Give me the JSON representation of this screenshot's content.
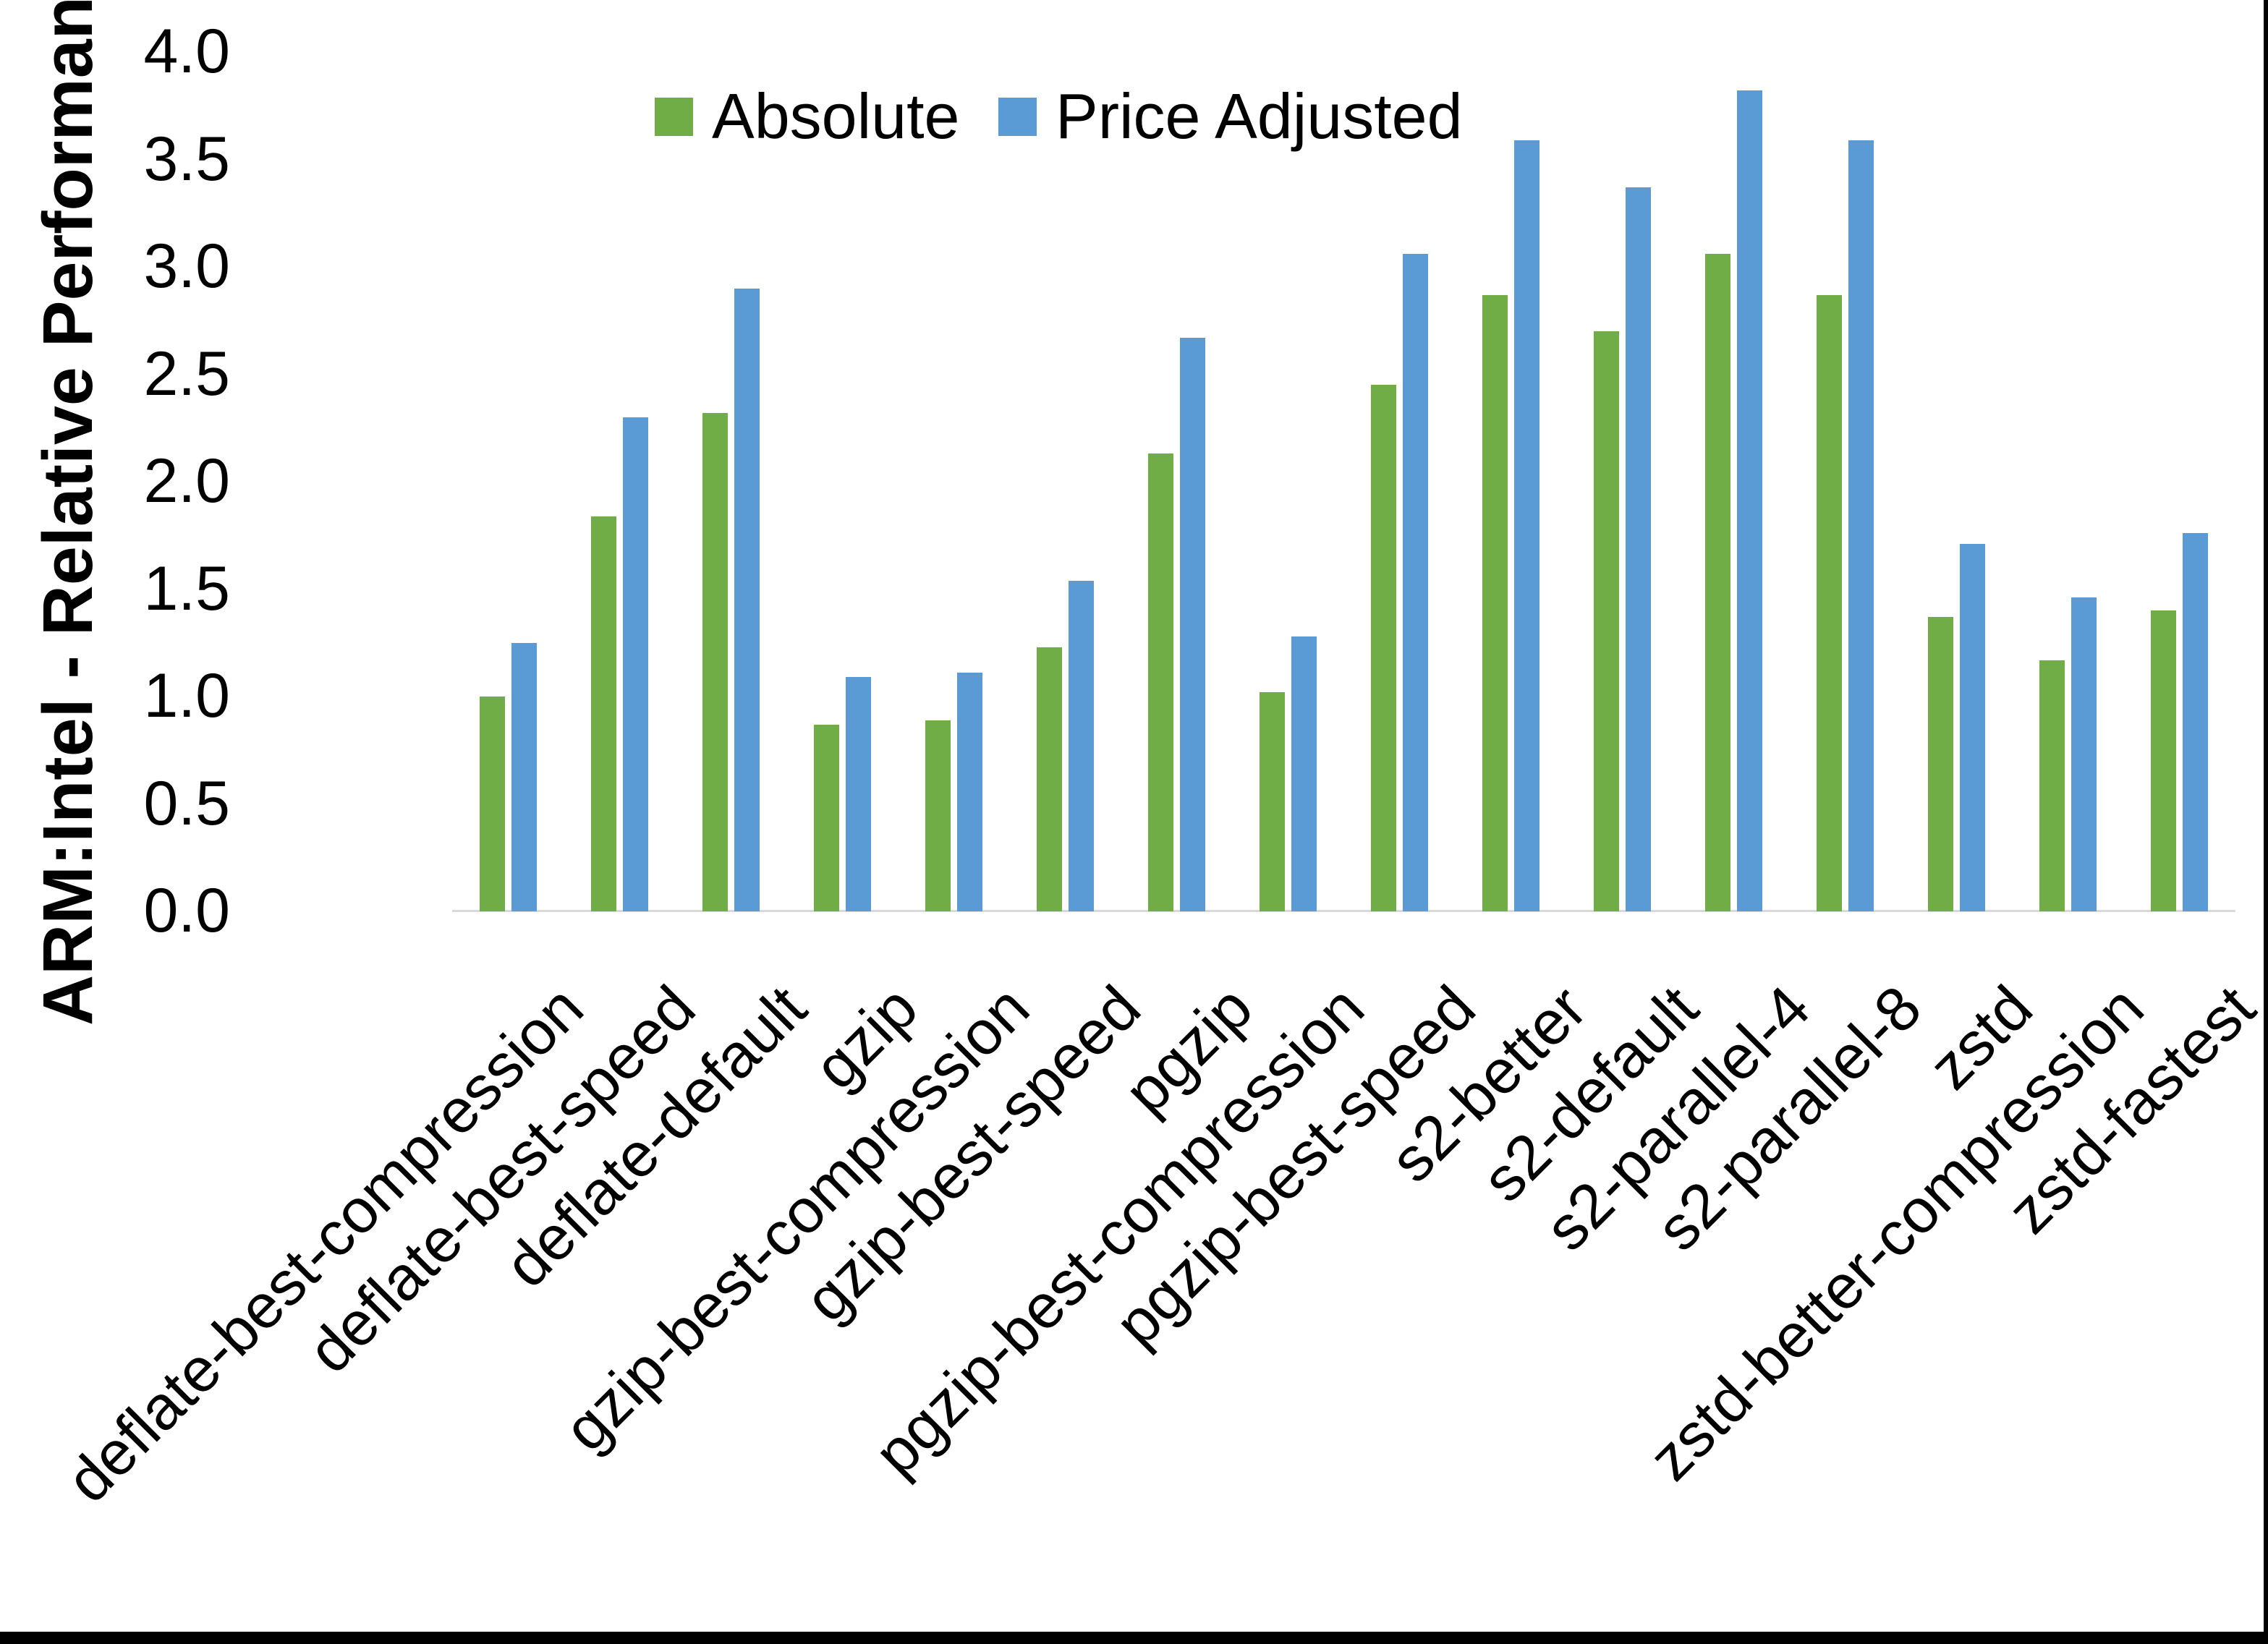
{
  "chart_data": {
    "type": "bar",
    "title": "",
    "xlabel": "",
    "ylabel": "ARM:Intel - Relative Performance",
    "ylim": [
      0.0,
      4.0
    ],
    "ytick_step": 0.5,
    "ytick_labels": [
      "0.0",
      "0.5",
      "1.0",
      "1.5",
      "2.0",
      "2.5",
      "3.0",
      "3.5",
      "4.0"
    ],
    "grid": false,
    "legend_position": "top-center",
    "background_color": "#ffffff",
    "axis_line_color": "#d9d9d9",
    "categories": [
      "deflate-best-compression",
      "deflate-best-speed",
      "deflate-default",
      "gzip",
      "gzip-best-compression",
      "gzip-best-speed",
      "pgzip",
      "pgzip-best-compression",
      "pgzip-best-speed",
      "s2-better",
      "s2-default",
      "s2-parallel-4",
      "s2-parallel-8",
      "zstd",
      "zstd-better-compression",
      "zstd-fastest"
    ],
    "series": [
      {
        "name": "Absolute",
        "color": "#70AD47",
        "values": [
          1.0,
          1.84,
          2.32,
          0.87,
          0.89,
          1.23,
          2.13,
          1.02,
          2.45,
          2.87,
          2.7,
          3.06,
          2.87,
          1.37,
          1.17,
          1.4
        ]
      },
      {
        "name": "Price Adjusted",
        "color": "#5B9BD5",
        "values": [
          1.25,
          2.3,
          2.9,
          1.09,
          1.11,
          1.54,
          2.67,
          1.28,
          3.06,
          3.59,
          3.37,
          3.82,
          3.59,
          1.71,
          1.46,
          1.76
        ]
      }
    ]
  }
}
